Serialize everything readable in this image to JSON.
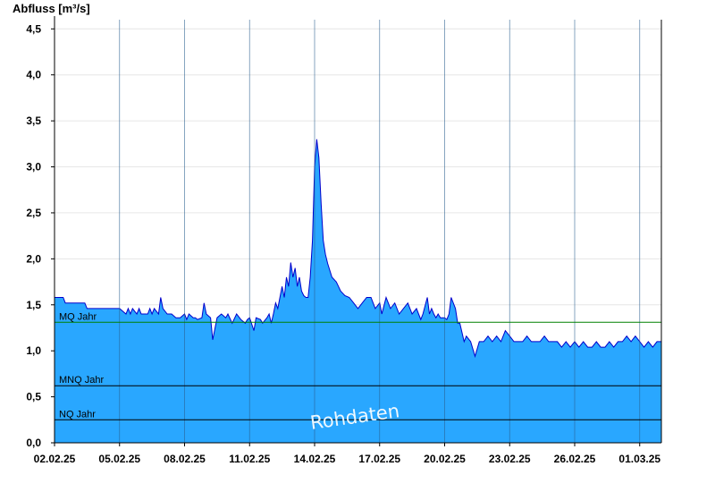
{
  "chart_data": {
    "type": "area",
    "title": "",
    "ylabel": "Abfluss [m³/s]",
    "xlabel": "",
    "ylim": [
      0,
      4.6
    ],
    "yticks": [
      "0,0",
      "0,5",
      "1,0",
      "1,5",
      "2,0",
      "2,5",
      "3,0",
      "3,5",
      "4,0",
      "4,5"
    ],
    "ytick_values": [
      0,
      0.5,
      1.0,
      1.5,
      2.0,
      2.5,
      3.0,
      3.5,
      4.0,
      4.5
    ],
    "xlim_days": [
      0,
      28
    ],
    "xticks": [
      "02.02.25",
      "05.02.25",
      "08.02.25",
      "11.02.25",
      "14.02.25",
      "17.02.25",
      "20.02.25",
      "23.02.25",
      "26.02.25",
      "01.03.25"
    ],
    "xtick_days": [
      0,
      3,
      6,
      9,
      12,
      15,
      18,
      21,
      24,
      27
    ],
    "grid": true,
    "fill_color": "#29a7ff",
    "line_color": "#0000cc",
    "series": [
      {
        "x": [
          0,
          0.4,
          0.5,
          1.4,
          1.5,
          3.0,
          3.3,
          3.4,
          3.5,
          3.6,
          3.8,
          3.9,
          4.0,
          4.3,
          4.4,
          4.5,
          4.6,
          4.8,
          4.9,
          5.0,
          5.2,
          5.4,
          5.6,
          5.8,
          6.0,
          6.1,
          6.2,
          6.4,
          6.5,
          6.6,
          6.8,
          6.9,
          7.0,
          7.2,
          7.3,
          7.5,
          7.7,
          7.9,
          8.0,
          8.2,
          8.4,
          8.6,
          8.8,
          8.9,
          9.0,
          9.2,
          9.3,
          9.5,
          9.6,
          9.8,
          9.9,
          10.0,
          10.1,
          10.2,
          10.3,
          10.4,
          10.5,
          10.6,
          10.7,
          10.8,
          10.9,
          11.0,
          11.1,
          11.2,
          11.3,
          11.4,
          11.5,
          11.6,
          11.7,
          11.8,
          11.9,
          12.0,
          12.1,
          12.2,
          12.3,
          12.4,
          12.5,
          12.6,
          12.8,
          13.0,
          13.1,
          13.2,
          13.4,
          13.6,
          13.8,
          14.0,
          14.2,
          14.4,
          14.6,
          14.8,
          15.0,
          15.1,
          15.3,
          15.5,
          15.7,
          15.9,
          16.1,
          16.3,
          16.5,
          16.7,
          16.9,
          17.0,
          17.2,
          17.3,
          17.4,
          17.5,
          17.6,
          17.7,
          17.8,
          17.9,
          18.0,
          18.1,
          18.2,
          18.3,
          18.5,
          18.6,
          18.7,
          18.9,
          19.0,
          19.2,
          19.4,
          19.6,
          19.8,
          20.0,
          20.2,
          20.4,
          20.6,
          20.8,
          21.0,
          21.2,
          21.4,
          21.6,
          21.8,
          22.0,
          22.2,
          22.4,
          22.6,
          22.8,
          23.0,
          23.2,
          23.4,
          23.6,
          23.8,
          24.0,
          24.2,
          24.4,
          24.6,
          24.8,
          25.0,
          25.2,
          25.4,
          25.6,
          25.8,
          26.0,
          26.2,
          26.4,
          26.6,
          26.8,
          27.0,
          27.2,
          27.4,
          27.6,
          27.8,
          28.0
        ],
        "y": [
          1.58,
          1.58,
          1.52,
          1.52,
          1.46,
          1.46,
          1.4,
          1.46,
          1.4,
          1.46,
          1.4,
          1.46,
          1.4,
          1.4,
          1.46,
          1.4,
          1.46,
          1.4,
          1.58,
          1.46,
          1.4,
          1.4,
          1.36,
          1.36,
          1.4,
          1.34,
          1.4,
          1.36,
          1.36,
          1.34,
          1.36,
          1.52,
          1.4,
          1.36,
          1.12,
          1.36,
          1.4,
          1.36,
          1.4,
          1.3,
          1.4,
          1.34,
          1.3,
          1.34,
          1.36,
          1.22,
          1.36,
          1.34,
          1.3,
          1.36,
          1.4,
          1.3,
          1.4,
          1.52,
          1.46,
          1.58,
          1.7,
          1.58,
          1.8,
          1.7,
          1.96,
          1.8,
          1.9,
          1.7,
          1.8,
          1.65,
          1.6,
          1.58,
          1.58,
          1.8,
          2.2,
          3.0,
          3.3,
          3.1,
          2.6,
          2.2,
          2.05,
          1.95,
          1.8,
          1.75,
          1.7,
          1.65,
          1.6,
          1.58,
          1.52,
          1.46,
          1.52,
          1.58,
          1.58,
          1.46,
          1.52,
          1.4,
          1.58,
          1.46,
          1.52,
          1.4,
          1.46,
          1.52,
          1.4,
          1.46,
          1.34,
          1.4,
          1.58,
          1.4,
          1.46,
          1.4,
          1.36,
          1.4,
          1.36,
          1.36,
          1.36,
          1.34,
          1.4,
          1.58,
          1.46,
          1.3,
          1.3,
          1.1,
          1.16,
          1.1,
          0.94,
          1.1,
          1.1,
          1.16,
          1.1,
          1.16,
          1.1,
          1.22,
          1.16,
          1.1,
          1.1,
          1.1,
          1.16,
          1.1,
          1.1,
          1.1,
          1.16,
          1.1,
          1.1,
          1.1,
          1.04,
          1.1,
          1.04,
          1.1,
          1.04,
          1.1,
          1.04,
          1.04,
          1.1,
          1.04,
          1.04,
          1.1,
          1.04,
          1.1,
          1.1,
          1.16,
          1.1,
          1.16,
          1.1,
          1.04,
          1.1,
          1.04,
          1.1,
          1.1
        ]
      }
    ],
    "reference_lines": [
      {
        "label": "MQ Jahr",
        "value": 1.31,
        "color": "#008000"
      },
      {
        "label": "MNQ Jahr",
        "value": 0.62,
        "color": "#000000"
      },
      {
        "label": "NQ Jahr",
        "value": 0.25,
        "color": "#000000"
      }
    ],
    "annotation": "Rohdaten"
  }
}
